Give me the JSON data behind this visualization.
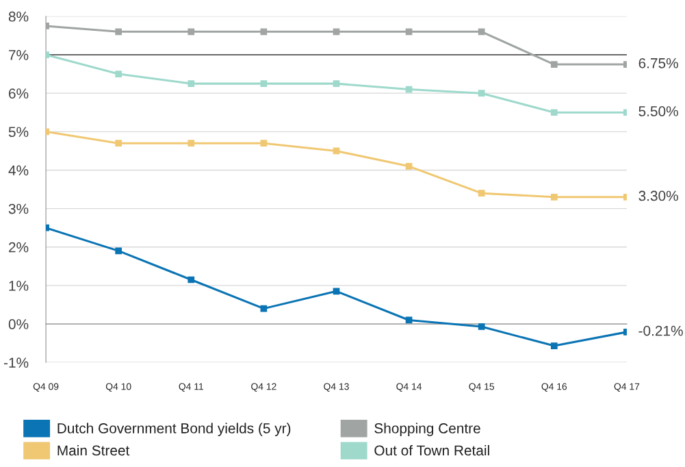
{
  "chart_data": {
    "type": "line",
    "categories": [
      "Q4 09",
      "Q4 10",
      "Q4 11",
      "Q4 12",
      "Q4 13",
      "Q4 14",
      "Q4 15",
      "Q4 16",
      "Q4 17"
    ],
    "ylim": [
      -1,
      8
    ],
    "yticks": [
      {
        "value": -1,
        "label": "-1%"
      },
      {
        "value": 0,
        "label": "0%"
      },
      {
        "value": 1,
        "label": "1%"
      },
      {
        "value": 2,
        "label": "2%"
      },
      {
        "value": 3,
        "label": "3%"
      },
      {
        "value": 4,
        "label": "4%"
      },
      {
        "value": 5,
        "label": "5%"
      },
      {
        "value": 6,
        "label": "6%"
      },
      {
        "value": 7,
        "label": "7%"
      },
      {
        "value": 8,
        "label": "8%"
      }
    ],
    "grid": "y",
    "marker": "square",
    "line_style": "solid",
    "legend": "bottom",
    "ref_lines": [
      {
        "axis": "y",
        "value": 7,
        "color": "#404040"
      }
    ],
    "series": [
      {
        "name": "Dutch Government Bond yields (5 yr)",
        "color": "#0a74b4",
        "values": [
          2.5,
          1.9,
          1.15,
          0.4,
          0.85,
          0.1,
          -0.07,
          -0.57,
          -0.21
        ],
        "value_labels": [
          null,
          null,
          null,
          null,
          null,
          null,
          null,
          null,
          "-0.21%"
        ]
      },
      {
        "name": "Main Street",
        "color": "#f0c873",
        "values": [
          5.0,
          4.7,
          4.7,
          4.7,
          4.5,
          4.1,
          3.4,
          3.3,
          3.3
        ],
        "value_labels": [
          null,
          null,
          null,
          null,
          null,
          null,
          null,
          null,
          "3.30%"
        ]
      },
      {
        "name": "Shopping Centre",
        "color": "#a0a5a4",
        "values": [
          7.75,
          7.6,
          7.6,
          7.6,
          7.6,
          7.6,
          7.6,
          6.75,
          6.75
        ],
        "value_labels": [
          null,
          null,
          null,
          null,
          null,
          null,
          null,
          null,
          "6.75%"
        ]
      },
      {
        "name": "Out of Town Retail",
        "color": "#9ed9cc",
        "values": [
          7.0,
          6.5,
          6.25,
          6.25,
          6.25,
          6.1,
          6.0,
          5.5,
          5.5
        ],
        "value_labels": [
          null,
          null,
          null,
          null,
          null,
          null,
          null,
          null,
          "5.50%"
        ]
      }
    ]
  }
}
